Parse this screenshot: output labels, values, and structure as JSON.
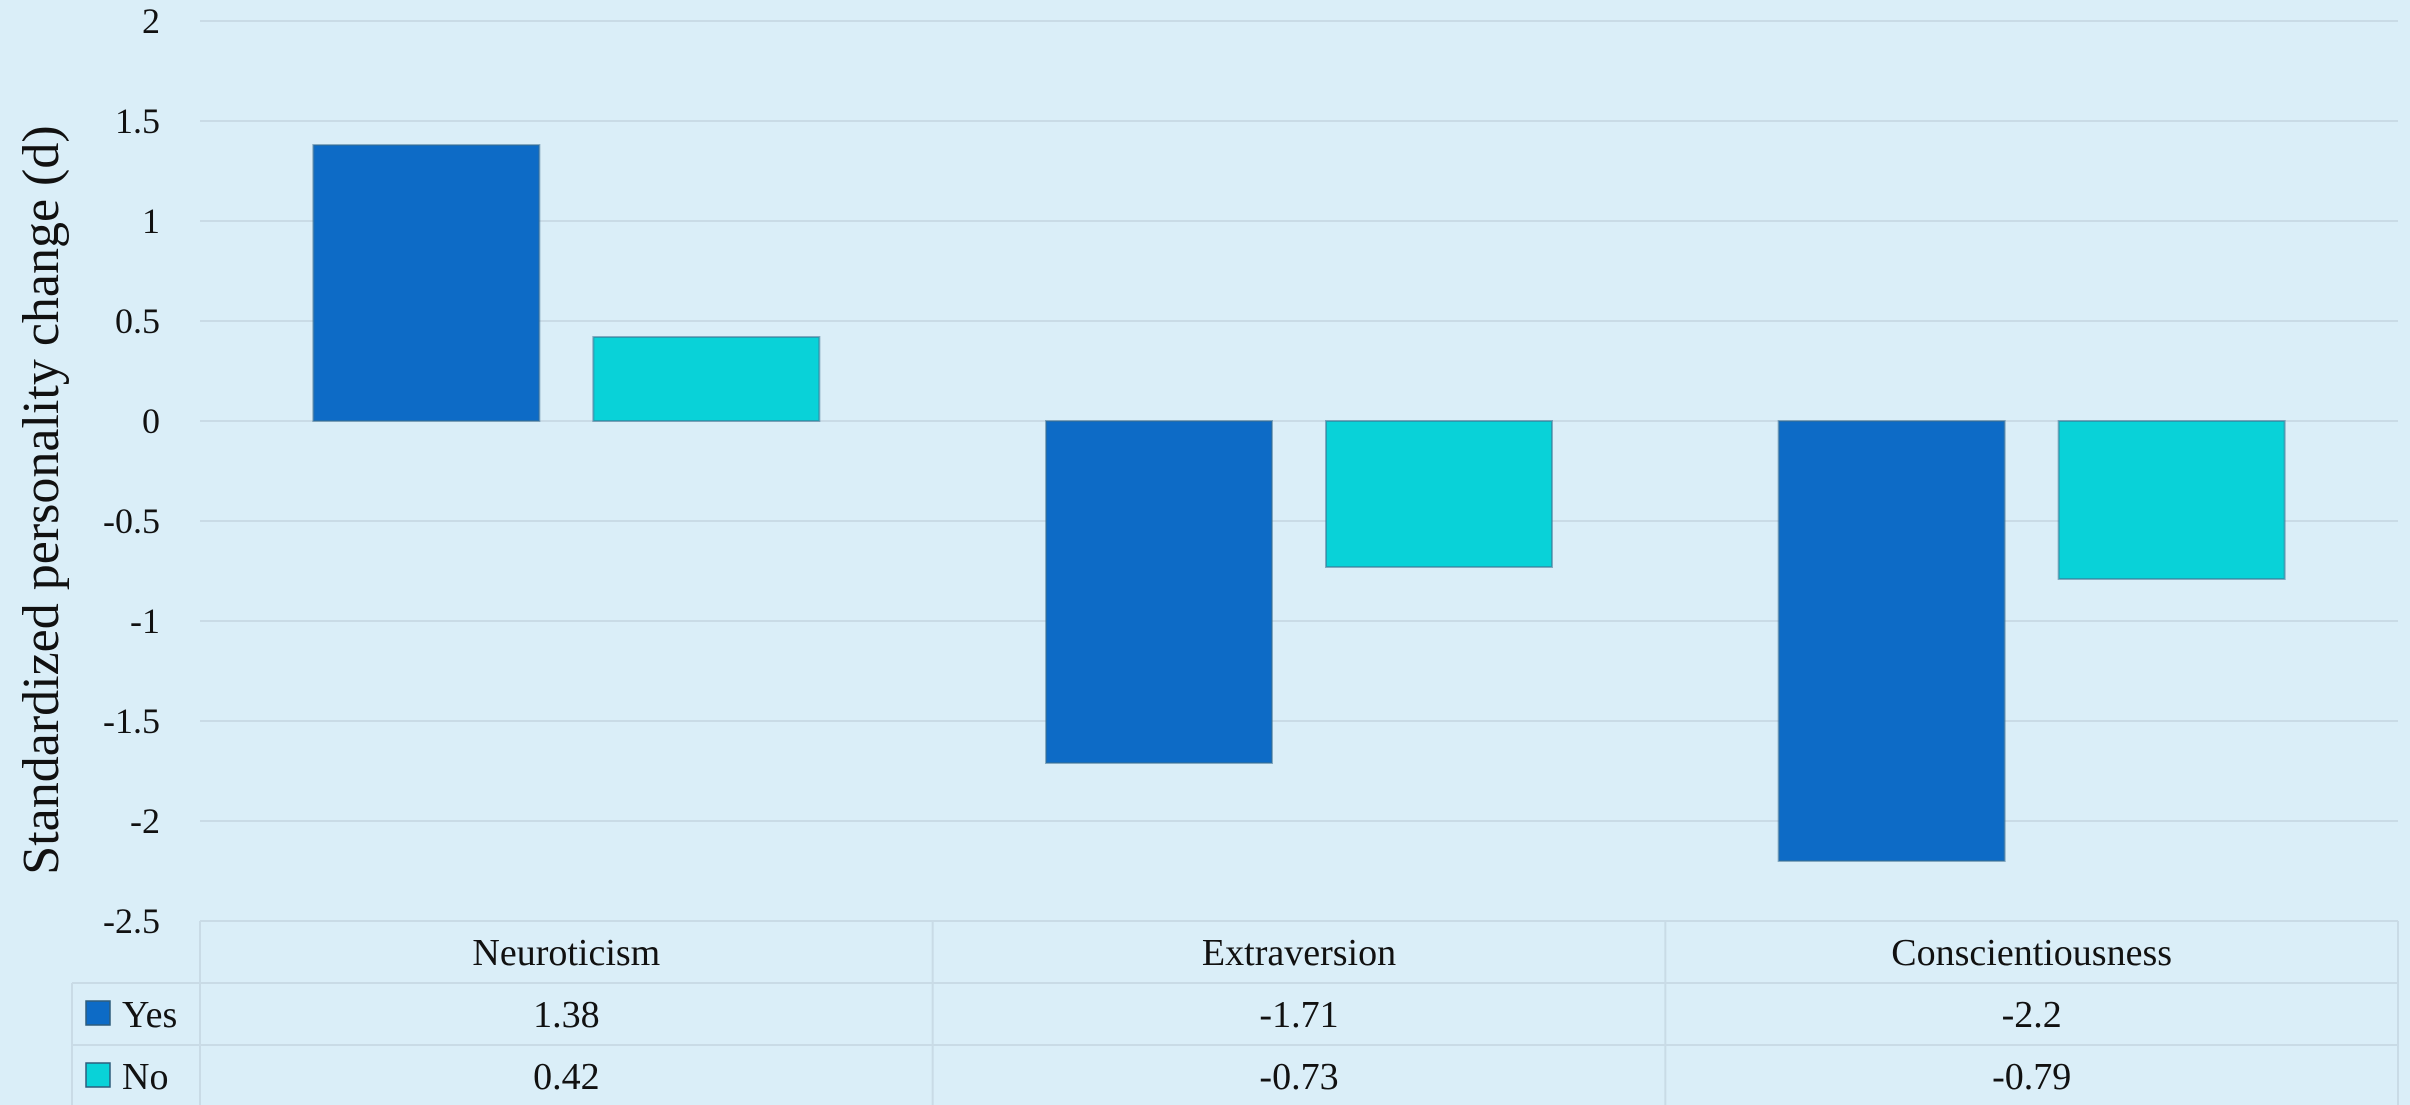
{
  "chart_data": {
    "type": "bar",
    "title": "",
    "xlabel": "",
    "ylabel": "Standardized personality change (d)",
    "categories": [
      "Neuroticism",
      "Extraversion",
      "Conscientiousness"
    ],
    "series": [
      {
        "name": "Yes",
        "values": [
          1.38,
          -1.71,
          -2.2
        ],
        "labels": [
          "1.38",
          "-1.71",
          "-2.2"
        ],
        "color": "#0d6bc6"
      },
      {
        "name": "No",
        "values": [
          0.42,
          -0.73,
          -0.79
        ],
        "labels": [
          "0.42",
          "-0.73",
          "-0.79"
        ],
        "color": "#09d2d8"
      }
    ],
    "ylim": [
      -2.5,
      2
    ],
    "yticks": [
      2,
      1.5,
      1,
      0.5,
      0,
      -0.5,
      -1,
      -1.5,
      -2,
      -2.5
    ],
    "ytick_labels": [
      "2",
      "1.5",
      "1",
      "0.5",
      "0",
      "-0.5",
      "-1",
      "-1.5",
      "-2",
      "-2.5"
    ],
    "grid": true,
    "legend": "data-table-left",
    "data_table": true,
    "colors": {
      "background": "#daeef8",
      "grid": "#c9dbe6"
    }
  }
}
